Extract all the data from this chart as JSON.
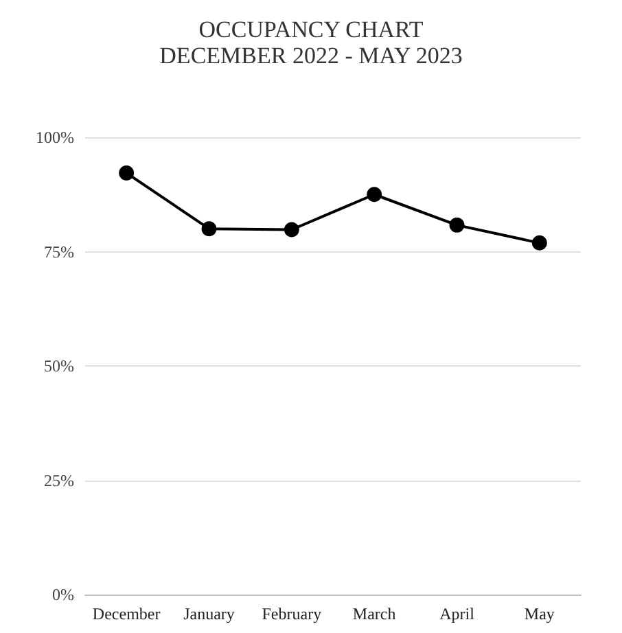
{
  "chart_data": {
    "type": "line",
    "title": "OCCUPANCY CHART",
    "subtitle": "DECEMBER 2022 - MAY 2023",
    "categories": [
      "December",
      "January",
      "February",
      "March",
      "April",
      "May"
    ],
    "series": [
      {
        "color": "#000000",
        "values": [
          92.2,
          80.0,
          79.8,
          87.5,
          80.8,
          76.9
        ]
      }
    ],
    "ylim": [
      0,
      100
    ],
    "yticks": [
      {
        "value": 0,
        "label": "0%"
      },
      {
        "value": 25,
        "label": "25%"
      },
      {
        "value": 50,
        "label": "50%"
      },
      {
        "value": 75,
        "label": "75%"
      },
      {
        "value": 100,
        "label": "100%"
      }
    ],
    "grid": "y",
    "marker": "circle",
    "line_style": "solid"
  }
}
